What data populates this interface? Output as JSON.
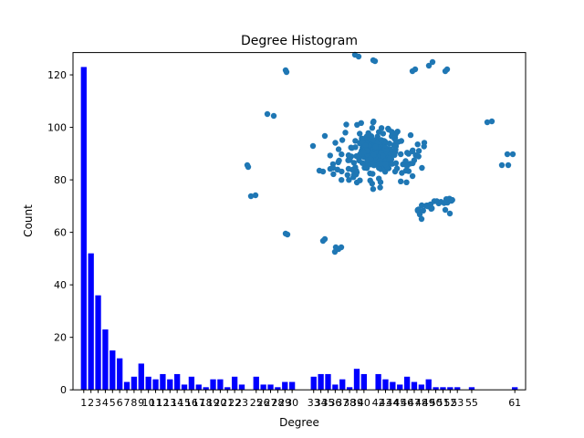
{
  "chart_data": {
    "type": "bar",
    "title": "Degree Histogram",
    "xlabel": "Degree",
    "ylabel": "Count",
    "xlim": [
      -0.5,
      62.5
    ],
    "ylim": [
      0,
      128.5
    ],
    "x_tick_labels": [
      "1",
      "2",
      "3",
      "4",
      "5",
      "6",
      "7",
      "8",
      "9",
      "10",
      "11",
      "12",
      "13",
      "14",
      "15",
      "16",
      "17",
      "18",
      "19",
      "20",
      "21",
      "22",
      "23",
      "25",
      "26",
      "27",
      "28",
      "29",
      "30",
      "33",
      "34",
      "35",
      "36",
      "37",
      "38",
      "39",
      "40",
      "42",
      "43",
      "44",
      "45",
      "46",
      "47",
      "48",
      "49",
      "50",
      "51",
      "52",
      "53",
      "55",
      "61"
    ],
    "y_ticks": [
      0,
      20,
      40,
      60,
      80,
      100,
      120
    ],
    "bar_color": "#0000ff",
    "bars": {
      "degree": [
        1,
        2,
        3,
        4,
        5,
        6,
        7,
        8,
        9,
        10,
        11,
        12,
        13,
        14,
        15,
        16,
        17,
        18,
        19,
        20,
        21,
        22,
        23,
        25,
        26,
        27,
        28,
        29,
        30,
        33,
        34,
        35,
        36,
        37,
        38,
        39,
        40,
        42,
        43,
        44,
        45,
        46,
        47,
        48,
        49,
        50,
        51,
        52,
        53,
        55,
        61
      ],
      "count": [
        123,
        52,
        36,
        23,
        15,
        12,
        3,
        5,
        10,
        5,
        4,
        6,
        4,
        6,
        2,
        5,
        2,
        1,
        4,
        4,
        1,
        5,
        2,
        5,
        2,
        2,
        1,
        3,
        3,
        5,
        6,
        6,
        2,
        4,
        1,
        8,
        6,
        6,
        4,
        3,
        2,
        5,
        3,
        2,
        4,
        1,
        1,
        1,
        1,
        1,
        1
      ]
    },
    "overlay": {
      "type": "scatter",
      "color": "#1f77b4",
      "description_free_points": true
    }
  }
}
